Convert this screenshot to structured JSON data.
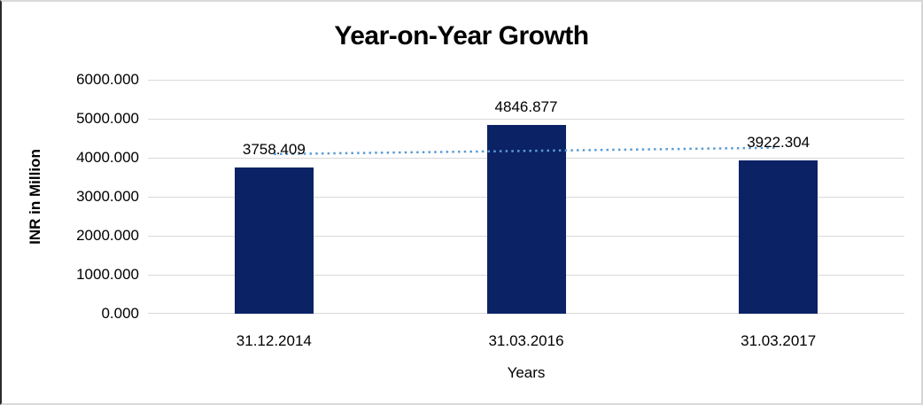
{
  "chart_data": {
    "type": "bar",
    "title": "Year-on-Year Growth",
    "xlabel": "Years",
    "ylabel": "INR in Million",
    "categories": [
      "31.12.2014",
      "31.03.2016",
      "31.03.2017"
    ],
    "values": [
      3758.409,
      4846.877,
      3922.304
    ],
    "data_labels": [
      "3758.409",
      "4846.877",
      "3922.304"
    ],
    "ylim": [
      0,
      6000
    ],
    "ytick_step": 1000,
    "ytick_labels": [
      "6000.000",
      "5000.000",
      "4000.000",
      "3000.000",
      "2000.000",
      "1000.000",
      "0.000"
    ],
    "grid": true,
    "legend_position": "none",
    "bar_color": "#0b2265",
    "gridline_color": "#d9d9d9",
    "text_color": "#000000",
    "trendline": {
      "type": "linear",
      "style": "dotted",
      "color": "#5b9bd5",
      "fit_values": [
        4093.916,
        4175.863,
        4257.811
      ]
    }
  }
}
